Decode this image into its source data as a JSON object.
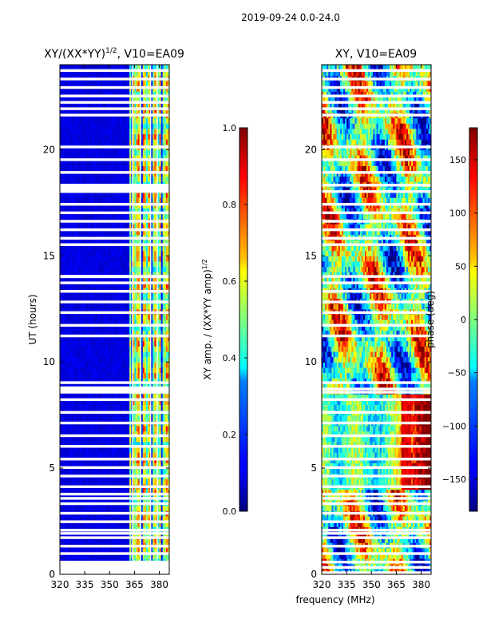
{
  "figure": {
    "suptitle": "2019-09-24 0.0-24.0",
    "shared_xlabel": "frequency (MHz)"
  },
  "chart_data": [
    {
      "type": "heatmap",
      "title": "XY/(XX*YY)",
      "title_sup": "1/2",
      "title_suffix": ", V10=EA09",
      "xlabel": "frequency (MHz)",
      "ylabel": "UT (hours)",
      "xlim": [
        320,
        386
      ],
      "ylim": [
        0,
        24
      ],
      "xticks": [
        320,
        335,
        350,
        365,
        380
      ],
      "yticks": [
        0,
        5,
        10,
        15,
        20
      ],
      "colorbar": {
        "label": "XY amp. / (XX*YY amp)",
        "label_sup": "1/2",
        "range": [
          0.0,
          1.0
        ],
        "ticks": [
          "0.0",
          "0.2",
          "0.4",
          "0.6",
          "0.8",
          "1.0"
        ],
        "colormap": "jet"
      },
      "description_values": {
        "low_band_MHz": [
          320,
          362
        ],
        "low_band_level": 0.08,
        "high_band_MHz": [
          362,
          386
        ],
        "high_band_level_range": [
          0.2,
          0.9
        ]
      }
    },
    {
      "type": "heatmap",
      "title": "XY, V10=EA09",
      "xlabel": "frequency (MHz)",
      "ylabel": "",
      "xlim": [
        320,
        386
      ],
      "ylim": [
        0,
        24
      ],
      "xticks": [
        320,
        335,
        350,
        365,
        380
      ],
      "yticks": [
        0,
        5,
        10,
        15,
        20
      ],
      "colorbar": {
        "label": "phase (deg)",
        "range": [
          -180,
          180
        ],
        "ticks": [
          "−150",
          "−100",
          "−50",
          "0",
          "50",
          "100",
          "150"
        ],
        "colormap": "jet"
      }
    }
  ],
  "colors": {
    "jet_low": "#00007f",
    "jet_mid": "#7fff7f",
    "jet_high": "#7f0000",
    "gap": "#ffffff"
  }
}
